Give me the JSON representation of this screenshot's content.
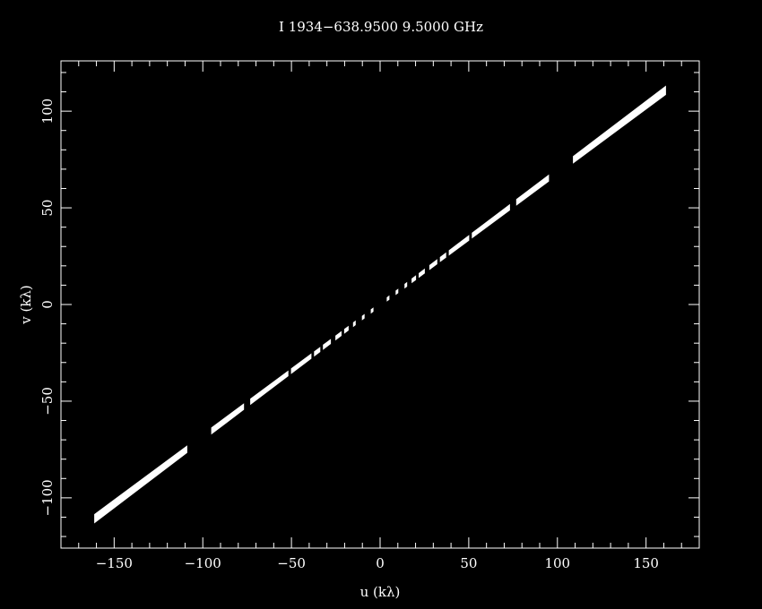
{
  "chart_data": {
    "type": "scatter",
    "title": "I 1934−638.9500  9.5000 GHz",
    "xlabel": "u (kλ)",
    "ylabel": "v (kλ)",
    "xlim": [
      -180,
      180
    ],
    "ylim": [
      -126,
      126
    ],
    "x_ticks_major": [
      -150,
      -100,
      -50,
      0,
      50,
      100,
      150
    ],
    "x_tick_labels": [
      "−150",
      "−100",
      "−50",
      "0",
      "50",
      "100",
      "150"
    ],
    "y_ticks_major": [
      -100,
      -50,
      0,
      50,
      100
    ],
    "y_tick_labels": [
      "−100",
      "−50",
      "0",
      "50",
      "100"
    ],
    "x_minor_step": 10,
    "y_minor_step": 10,
    "grid": false,
    "background_color": "#000000",
    "foreground_color": "#ffffff",
    "point_color": "#ffffff",
    "slope": 0.6875,
    "band_half_width": 1.3,
    "segments": [
      {
        "u_start": -161,
        "u_end": -109
      },
      {
        "u_start": -95,
        "u_end": -77
      },
      {
        "u_start": -73,
        "u_end": -52
      },
      {
        "u_start": -50,
        "u_end": -39
      },
      {
        "u_start": -37,
        "u_end": -34
      },
      {
        "u_start": -32,
        "u_end": -28
      },
      {
        "u_start": -25,
        "u_end": -22
      },
      {
        "u_start": -20,
        "u_end": -18
      },
      {
        "u_start": -15,
        "u_end": -14
      },
      {
        "u_start": -10,
        "u_end": -9
      },
      {
        "u_start": -5,
        "u_end": -4
      },
      {
        "u_start": 4,
        "u_end": 5
      },
      {
        "u_start": 9,
        "u_end": 10
      },
      {
        "u_start": 14,
        "u_end": 15
      },
      {
        "u_start": 18,
        "u_end": 20
      },
      {
        "u_start": 22,
        "u_end": 25
      },
      {
        "u_start": 28,
        "u_end": 32
      },
      {
        "u_start": 34,
        "u_end": 37
      },
      {
        "u_start": 39,
        "u_end": 50
      },
      {
        "u_start": 52,
        "u_end": 73
      },
      {
        "u_start": 77,
        "u_end": 95
      },
      {
        "u_start": 109,
        "u_end": 161
      }
    ]
  }
}
